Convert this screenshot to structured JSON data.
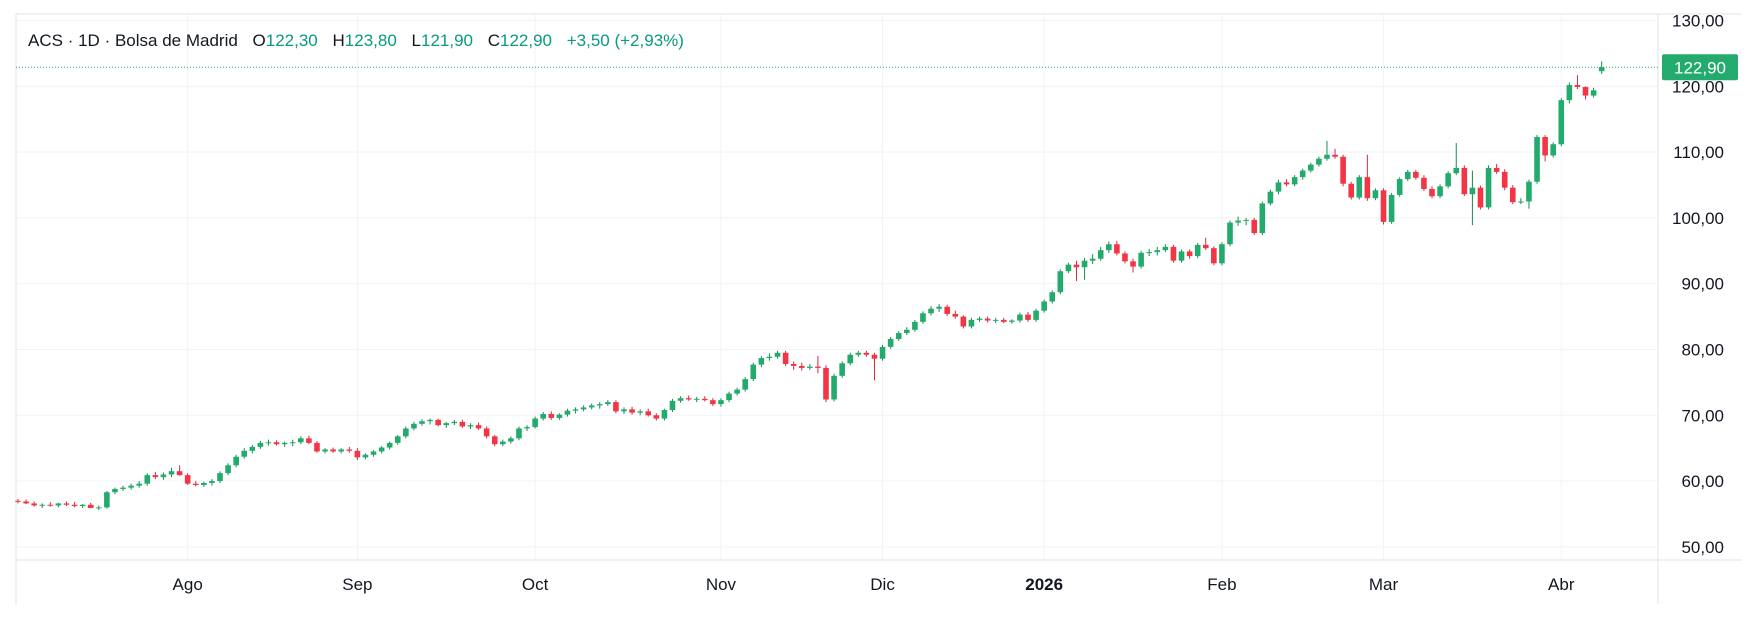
{
  "header": {
    "symbol": "ACS",
    "interval": "1D",
    "exchange": "Bolsa de Madrid",
    "open_label": "O",
    "open": "122,30",
    "high_label": "H",
    "high": "123,80",
    "low_label": "L",
    "low": "121,90",
    "close_label": "C",
    "close": "122,90",
    "change": "+3,50 (+2,93%)"
  },
  "last_price_label": "122,90",
  "colors": {
    "up": "#22ab6c",
    "down": "#f23645",
    "up_wick": "#178a55",
    "down_wick": "#d9283a",
    "grid": "#f0f3fa",
    "axis": "#e0e3eb",
    "price_line": "#22ab6c"
  },
  "chart_data": {
    "type": "candlestick",
    "title": "ACS · 1D · Bolsa de Madrid",
    "ylim": [
      48,
      131
    ],
    "y_ticks": [
      "50,00",
      "60,00",
      "70,00",
      "80,00",
      "90,00",
      "100,00",
      "110,00",
      "120,00",
      "130,00"
    ],
    "y_tick_values": [
      50,
      60,
      70,
      80,
      90,
      100,
      110,
      120,
      130
    ],
    "x_ticks": [
      {
        "label": "Ago",
        "index": 21,
        "bold": false
      },
      {
        "label": "Sep",
        "index": 42,
        "bold": false
      },
      {
        "label": "Oct",
        "index": 64,
        "bold": false
      },
      {
        "label": "Nov",
        "index": 87,
        "bold": false
      },
      {
        "label": "Dic",
        "index": 107,
        "bold": false
      },
      {
        "label": "2026",
        "index": 127,
        "bold": true
      },
      {
        "label": "Feb",
        "index": 149,
        "bold": false
      },
      {
        "label": "Mar",
        "index": 169,
        "bold": false
      },
      {
        "label": "Abr",
        "index": 191,
        "bold": false
      }
    ],
    "last_close": 122.9,
    "candles": [
      [
        57.0,
        57.3,
        56.6,
        56.9
      ],
      [
        56.9,
        57.2,
        56.5,
        56.6
      ],
      [
        56.6,
        56.9,
        56.1,
        56.3
      ],
      [
        56.3,
        56.6,
        55.9,
        56.4
      ],
      [
        56.4,
        56.8,
        56.1,
        56.3
      ],
      [
        56.3,
        56.7,
        56.0,
        56.6
      ],
      [
        56.6,
        56.9,
        56.2,
        56.4
      ],
      [
        56.4,
        56.8,
        56.0,
        56.2
      ],
      [
        56.2,
        56.5,
        55.9,
        56.4
      ],
      [
        56.4,
        56.7,
        56.0,
        55.9
      ],
      [
        55.9,
        56.3,
        55.6,
        56.0
      ],
      [
        56.0,
        58.5,
        55.8,
        58.3
      ],
      [
        58.3,
        59.0,
        58.0,
        58.8
      ],
      [
        58.8,
        59.3,
        58.5,
        59.0
      ],
      [
        59.0,
        59.6,
        58.7,
        59.3
      ],
      [
        59.3,
        60.0,
        59.0,
        59.6
      ],
      [
        59.6,
        61.2,
        59.3,
        60.9
      ],
      [
        60.9,
        61.4,
        60.3,
        60.6
      ],
      [
        60.6,
        61.3,
        60.2,
        61.0
      ],
      [
        61.0,
        62.0,
        60.6,
        61.5
      ],
      [
        61.5,
        62.4,
        60.8,
        60.9
      ],
      [
        60.9,
        61.2,
        59.4,
        59.6
      ],
      [
        59.6,
        60.0,
        59.2,
        59.4
      ],
      [
        59.4,
        59.9,
        59.1,
        59.7
      ],
      [
        59.7,
        60.3,
        59.3,
        60.0
      ],
      [
        60.0,
        61.5,
        59.7,
        61.2
      ],
      [
        61.2,
        62.7,
        60.9,
        62.4
      ],
      [
        62.4,
        64.0,
        62.1,
        63.7
      ],
      [
        63.7,
        65.0,
        63.4,
        64.6
      ],
      [
        64.6,
        65.5,
        64.2,
        65.2
      ],
      [
        65.2,
        66.1,
        64.9,
        65.8
      ],
      [
        65.8,
        66.3,
        65.4,
        65.9
      ],
      [
        65.9,
        66.2,
        65.4,
        65.6
      ],
      [
        65.6,
        66.0,
        65.2,
        65.8
      ],
      [
        65.8,
        66.3,
        65.3,
        65.9
      ],
      [
        65.9,
        66.8,
        65.6,
        66.5
      ],
      [
        66.5,
        66.9,
        65.6,
        65.8
      ],
      [
        65.8,
        66.1,
        64.3,
        64.5
      ],
      [
        64.5,
        65.0,
        64.2,
        64.8
      ],
      [
        64.8,
        65.1,
        64.3,
        64.5
      ],
      [
        64.5,
        65.0,
        64.2,
        64.8
      ],
      [
        64.8,
        65.2,
        64.3,
        64.6
      ],
      [
        64.6,
        65.0,
        63.2,
        63.6
      ],
      [
        63.6,
        64.2,
        63.3,
        64.0
      ],
      [
        64.0,
        64.7,
        63.7,
        64.5
      ],
      [
        64.5,
        65.3,
        64.2,
        65.1
      ],
      [
        65.1,
        66.0,
        64.8,
        65.8
      ],
      [
        65.8,
        67.0,
        65.5,
        66.8
      ],
      [
        66.8,
        68.3,
        66.5,
        68.0
      ],
      [
        68.0,
        69.0,
        67.7,
        68.7
      ],
      [
        68.7,
        69.4,
        68.4,
        69.1
      ],
      [
        69.1,
        69.5,
        68.6,
        69.3
      ],
      [
        69.3,
        69.5,
        68.3,
        68.5
      ],
      [
        68.5,
        69.0,
        68.1,
        68.8
      ],
      [
        68.8,
        69.3,
        68.5,
        69.0
      ],
      [
        69.0,
        69.3,
        68.1,
        68.3
      ],
      [
        68.3,
        68.8,
        67.9,
        68.5
      ],
      [
        68.5,
        68.9,
        67.8,
        68.0
      ],
      [
        68.0,
        68.3,
        66.5,
        66.8
      ],
      [
        66.8,
        67.0,
        65.3,
        65.6
      ],
      [
        65.6,
        66.3,
        65.3,
        66.0
      ],
      [
        66.0,
        66.8,
        65.7,
        66.5
      ],
      [
        66.5,
        68.3,
        66.2,
        68.0
      ],
      [
        68.0,
        68.5,
        67.6,
        68.2
      ],
      [
        68.2,
        69.8,
        68.0,
        69.5
      ],
      [
        69.5,
        70.5,
        69.2,
        70.2
      ],
      [
        70.2,
        70.6,
        69.3,
        69.6
      ],
      [
        69.6,
        70.3,
        69.3,
        70.1
      ],
      [
        70.1,
        71.0,
        69.8,
        70.7
      ],
      [
        70.7,
        71.2,
        70.3,
        70.9
      ],
      [
        70.9,
        71.5,
        70.6,
        71.2
      ],
      [
        71.2,
        71.8,
        70.9,
        71.5
      ],
      [
        71.5,
        72.0,
        71.0,
        71.7
      ],
      [
        71.7,
        72.3,
        71.4,
        72.0
      ],
      [
        72.0,
        72.3,
        70.3,
        70.6
      ],
      [
        70.6,
        71.2,
        70.2,
        70.9
      ],
      [
        70.9,
        71.3,
        70.1,
        70.4
      ],
      [
        70.4,
        70.9,
        70.0,
        70.6
      ],
      [
        70.6,
        71.0,
        69.8,
        70.0
      ],
      [
        70.0,
        70.3,
        69.2,
        69.5
      ],
      [
        69.5,
        71.0,
        69.2,
        70.8
      ],
      [
        70.8,
        72.5,
        70.5,
        72.2
      ],
      [
        72.2,
        72.9,
        71.9,
        72.6
      ],
      [
        72.6,
        73.0,
        72.2,
        72.4
      ],
      [
        72.4,
        72.8,
        72.0,
        72.5
      ],
      [
        72.5,
        72.9,
        72.1,
        72.3
      ],
      [
        72.3,
        72.6,
        71.4,
        71.7
      ],
      [
        71.7,
        72.6,
        71.3,
        72.3
      ],
      [
        72.3,
        73.6,
        72.0,
        73.3
      ],
      [
        73.3,
        74.2,
        73.0,
        73.9
      ],
      [
        73.9,
        75.8,
        73.6,
        75.5
      ],
      [
        75.5,
        78.0,
        75.2,
        77.7
      ],
      [
        77.7,
        79.0,
        77.3,
        78.7
      ],
      [
        78.7,
        79.4,
        78.3,
        78.9
      ],
      [
        78.9,
        79.8,
        78.6,
        79.5
      ],
      [
        79.5,
        79.8,
        77.5,
        77.8
      ],
      [
        77.8,
        78.2,
        76.9,
        77.5
      ],
      [
        77.5,
        78.0,
        76.8,
        77.2
      ],
      [
        77.2,
        77.8,
        76.9,
        77.4
      ],
      [
        77.4,
        79.0,
        76.4,
        77.2
      ],
      [
        77.2,
        77.6,
        72.0,
        72.4
      ],
      [
        72.4,
        76.3,
        72.1,
        76.0
      ],
      [
        76.0,
        78.2,
        75.7,
        77.9
      ],
      [
        77.9,
        79.5,
        77.6,
        79.2
      ],
      [
        79.2,
        79.8,
        78.9,
        79.5
      ],
      [
        79.5,
        79.8,
        78.9,
        79.2
      ],
      [
        79.2,
        79.5,
        75.3,
        78.6
      ],
      [
        78.6,
        80.7,
        78.3,
        80.4
      ],
      [
        80.4,
        81.9,
        80.1,
        81.6
      ],
      [
        81.6,
        82.8,
        81.3,
        82.5
      ],
      [
        82.5,
        83.4,
        82.2,
        83.0
      ],
      [
        83.0,
        84.5,
        82.7,
        84.2
      ],
      [
        84.2,
        85.8,
        83.9,
        85.5
      ],
      [
        85.5,
        86.6,
        85.2,
        86.2
      ],
      [
        86.2,
        86.9,
        85.7,
        86.5
      ],
      [
        86.5,
        86.8,
        85.1,
        85.4
      ],
      [
        85.4,
        85.9,
        84.7,
        85.0
      ],
      [
        85.0,
        85.2,
        83.2,
        83.5
      ],
      [
        83.5,
        84.8,
        83.2,
        84.5
      ],
      [
        84.5,
        85.0,
        84.2,
        84.7
      ],
      [
        84.7,
        85.0,
        84.1,
        84.4
      ],
      [
        84.4,
        84.8,
        84.0,
        84.5
      ],
      [
        84.5,
        84.8,
        84.0,
        84.2
      ],
      [
        84.2,
        84.6,
        83.9,
        84.4
      ],
      [
        84.4,
        85.6,
        84.1,
        85.3
      ],
      [
        85.3,
        85.7,
        84.2,
        84.5
      ],
      [
        84.5,
        86.2,
        84.2,
        85.9
      ],
      [
        85.9,
        87.6,
        85.6,
        87.3
      ],
      [
        87.3,
        89.0,
        87.0,
        88.7
      ],
      [
        88.7,
        92.2,
        88.4,
        91.9
      ],
      [
        91.9,
        93.2,
        91.6,
        92.9
      ],
      [
        92.9,
        93.5,
        90.4,
        92.5
      ],
      [
        92.5,
        93.9,
        90.6,
        93.5
      ],
      [
        93.5,
        94.5,
        93.0,
        93.8
      ],
      [
        93.8,
        95.6,
        93.5,
        95.1
      ],
      [
        95.1,
        96.4,
        94.7,
        96.0
      ],
      [
        96.0,
        96.5,
        94.3,
        94.6
      ],
      [
        94.6,
        94.9,
        93.1,
        93.4
      ],
      [
        93.4,
        93.8,
        91.7,
        92.6
      ],
      [
        92.6,
        95.0,
        92.3,
        94.7
      ],
      [
        94.7,
        95.3,
        94.2,
        94.8
      ],
      [
        94.8,
        95.6,
        94.3,
        95.1
      ],
      [
        95.1,
        96.0,
        94.8,
        95.6
      ],
      [
        95.6,
        95.9,
        93.2,
        93.5
      ],
      [
        93.5,
        95.2,
        93.2,
        94.9
      ],
      [
        94.9,
        95.2,
        93.8,
        94.2
      ],
      [
        94.2,
        96.2,
        93.9,
        95.9
      ],
      [
        95.9,
        97.0,
        95.1,
        95.4
      ],
      [
        95.4,
        95.7,
        92.8,
        93.1
      ],
      [
        93.1,
        96.3,
        92.8,
        96.0
      ],
      [
        96.0,
        99.6,
        95.7,
        99.3
      ],
      [
        99.3,
        100.2,
        98.8,
        99.6
      ],
      [
        99.6,
        100.0,
        98.9,
        99.7
      ],
      [
        99.7,
        100.0,
        97.4,
        97.7
      ],
      [
        97.7,
        102.5,
        97.4,
        102.2
      ],
      [
        102.2,
        104.3,
        101.9,
        104.0
      ],
      [
        104.0,
        105.8,
        103.6,
        105.4
      ],
      [
        105.4,
        105.9,
        104.8,
        105.1
      ],
      [
        105.1,
        106.5,
        104.8,
        106.2
      ],
      [
        106.2,
        107.5,
        105.8,
        107.2
      ],
      [
        107.2,
        108.4,
        106.9,
        108.1
      ],
      [
        108.1,
        109.3,
        107.8,
        109.0
      ],
      [
        109.0,
        111.7,
        108.7,
        109.6
      ],
      [
        109.6,
        110.5,
        109.0,
        109.3
      ],
      [
        109.3,
        109.6,
        104.8,
        105.2
      ],
      [
        105.2,
        105.5,
        102.8,
        103.1
      ],
      [
        103.1,
        106.5,
        102.8,
        106.2
      ],
      [
        106.2,
        109.6,
        102.6,
        103.0
      ],
      [
        103.0,
        104.5,
        102.7,
        104.2
      ],
      [
        104.2,
        104.5,
        99.0,
        99.4
      ],
      [
        99.4,
        103.8,
        99.1,
        103.5
      ],
      [
        103.5,
        106.2,
        103.2,
        105.9
      ],
      [
        105.9,
        107.3,
        105.6,
        107.0
      ],
      [
        107.0,
        107.3,
        105.8,
        106.1
      ],
      [
        106.1,
        106.5,
        104.1,
        104.4
      ],
      [
        104.4,
        104.8,
        103.0,
        103.3
      ],
      [
        103.3,
        105.1,
        103.0,
        104.8
      ],
      [
        104.8,
        107.1,
        104.5,
        106.8
      ],
      [
        106.8,
        111.4,
        106.5,
        107.6
      ],
      [
        107.6,
        108.0,
        103.3,
        103.6
      ],
      [
        103.6,
        107.2,
        98.9,
        104.6
      ],
      [
        104.6,
        104.9,
        101.3,
        101.6
      ],
      [
        101.6,
        108.0,
        101.3,
        107.6
      ],
      [
        107.6,
        108.2,
        106.7,
        107.0
      ],
      [
        107.0,
        107.4,
        104.2,
        104.6
      ],
      [
        104.6,
        105.0,
        102.1,
        102.4
      ],
      [
        102.4,
        103.0,
        102.1,
        102.5
      ],
      [
        102.5,
        105.8,
        101.4,
        105.5
      ],
      [
        105.5,
        112.6,
        105.2,
        112.3
      ],
      [
        112.3,
        112.6,
        108.6,
        109.5
      ],
      [
        109.5,
        111.5,
        109.2,
        111.2
      ],
      [
        111.2,
        118.2,
        110.9,
        117.9
      ],
      [
        117.9,
        120.6,
        117.4,
        120.2
      ],
      [
        120.2,
        121.7,
        119.6,
        119.9
      ],
      [
        119.9,
        120.0,
        118.0,
        118.6
      ],
      [
        118.6,
        119.8,
        118.3,
        119.4
      ],
      [
        122.3,
        123.8,
        121.9,
        122.9
      ]
    ]
  }
}
